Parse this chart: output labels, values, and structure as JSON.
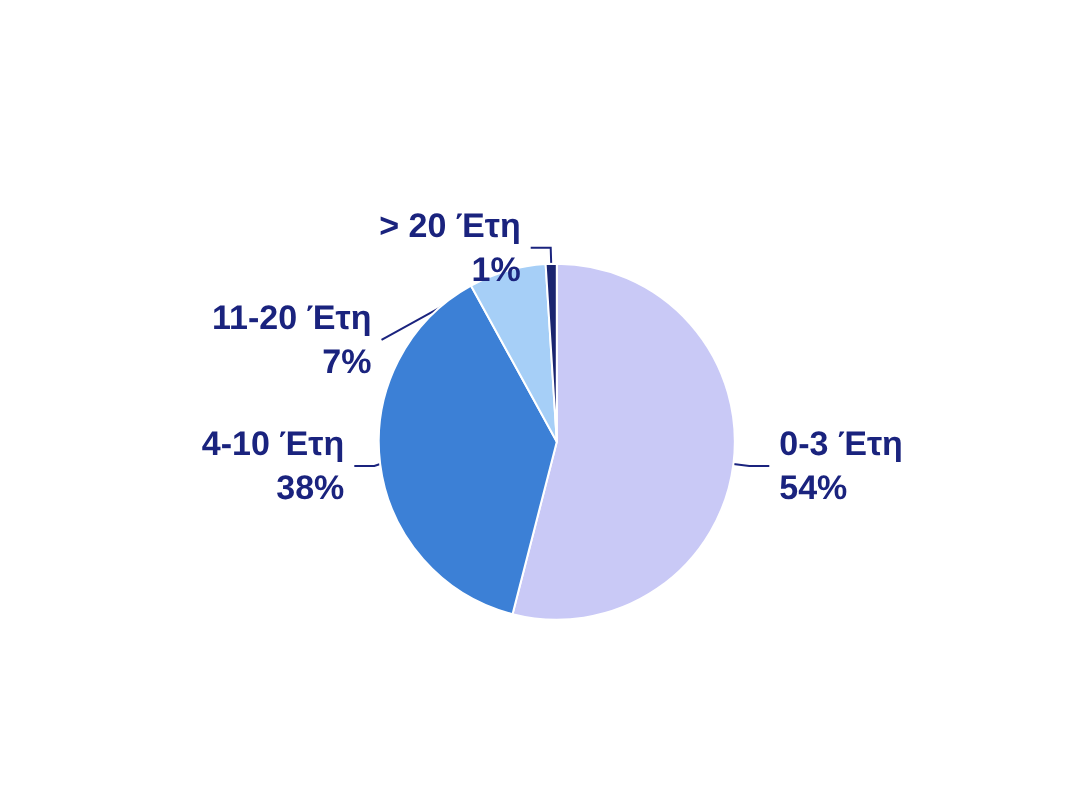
{
  "chart_data": {
    "type": "pie",
    "categories": [
      "0-3 Έτη",
      "4-10 Έτη",
      "11-20 Έτη",
      "> 20 Έτη"
    ],
    "values": [
      54,
      38,
      7,
      1
    ],
    "value_labels": [
      "54%",
      "38%",
      "7%",
      "1%"
    ],
    "colors": [
      "#c9c9f6",
      "#3c80d6",
      "#a6cff7",
      "#1a2470"
    ],
    "legend": false
  }
}
